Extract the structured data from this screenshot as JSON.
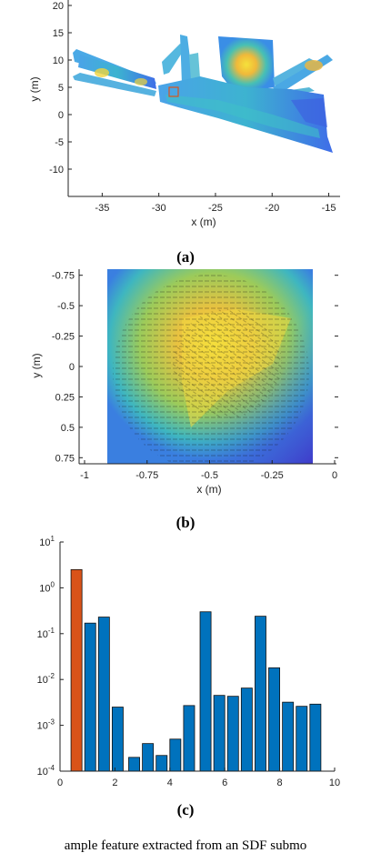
{
  "panels": {
    "a": "(a)",
    "b": "(b)",
    "c": "(c)"
  },
  "caption": "ample feature extracted from an SDF submo",
  "chart_data": [
    {
      "type": "heatmap",
      "xlabel": "x (m)",
      "ylabel": "y (m)",
      "xlim": [
        -38,
        -14
      ],
      "ylim": [
        -15,
        21
      ],
      "xticks": [
        -35,
        -30,
        -25,
        -20,
        -15
      ],
      "yticks": [
        20,
        15,
        10,
        5,
        0,
        -5,
        -10
      ],
      "xtick_labels": [
        "-35",
        "-30",
        "-25",
        "-20",
        "-15"
      ],
      "ytick_labels": [
        "20",
        "15",
        "10",
        "5",
        "0",
        "-5",
        "-10"
      ],
      "highlight_square": {
        "x": [
          -29,
          -28
        ],
        "y": [
          4,
          5
        ]
      }
    },
    {
      "type": "heatmap",
      "xlabel": "x (m)",
      "ylabel": "y (m)",
      "xlim": [
        -1,
        0
      ],
      "ylim": [
        0.8,
        -0.8
      ],
      "xticks": [
        -1,
        -0.75,
        -0.5,
        -0.25,
        0
      ],
      "yticks": [
        -0.75,
        -0.5,
        -0.25,
        0,
        0.25,
        0.5,
        0.75
      ],
      "xtick_labels": [
        "-1",
        "-0.75",
        "-0.5",
        "-0.25",
        "0"
      ],
      "ytick_labels": [
        "-0.75",
        "-0.5",
        "-0.25",
        "0",
        "0.25",
        "0.5",
        "0.75"
      ]
    },
    {
      "type": "bar",
      "yscale": "log",
      "xlim": [
        0,
        10
      ],
      "ylim": [
        0.0001,
        10
      ],
      "xticks": [
        0,
        2,
        4,
        6,
        8,
        10
      ],
      "xtick_labels": [
        "0",
        "2",
        "4",
        "6",
        "8",
        "10"
      ],
      "yticks": [
        10,
        1,
        0.1,
        0.01,
        0.001,
        0.0001
      ],
      "ytick_bases": [
        "10",
        "10",
        "10",
        "10",
        "10",
        "10"
      ],
      "ytick_exps": [
        "1",
        "0",
        "-1",
        "-2",
        "-3",
        "-4"
      ],
      "bar_width": 0.4,
      "x": [
        0.6,
        1.1,
        1.6,
        2.1,
        2.7,
        3.2,
        3.7,
        4.2,
        4.7,
        5.3,
        5.8,
        6.3,
        6.8,
        7.3,
        7.8,
        8.3,
        8.8,
        9.3
      ],
      "values": [
        2.5,
        0.17,
        0.23,
        0.0025,
        0.0002,
        0.0004,
        0.00022,
        0.0005,
        0.0027,
        0.3,
        0.0045,
        0.0043,
        0.0065,
        0.24,
        0.018,
        0.0032,
        0.0026,
        0.0029
      ],
      "colors": [
        "#d95319",
        "#0072bd",
        "#0072bd",
        "#0072bd",
        "#0072bd",
        "#0072bd",
        "#0072bd",
        "#0072bd",
        "#0072bd",
        "#0072bd",
        "#0072bd",
        "#0072bd",
        "#0072bd",
        "#0072bd",
        "#0072bd",
        "#0072bd",
        "#0072bd",
        "#0072bd"
      ]
    }
  ]
}
